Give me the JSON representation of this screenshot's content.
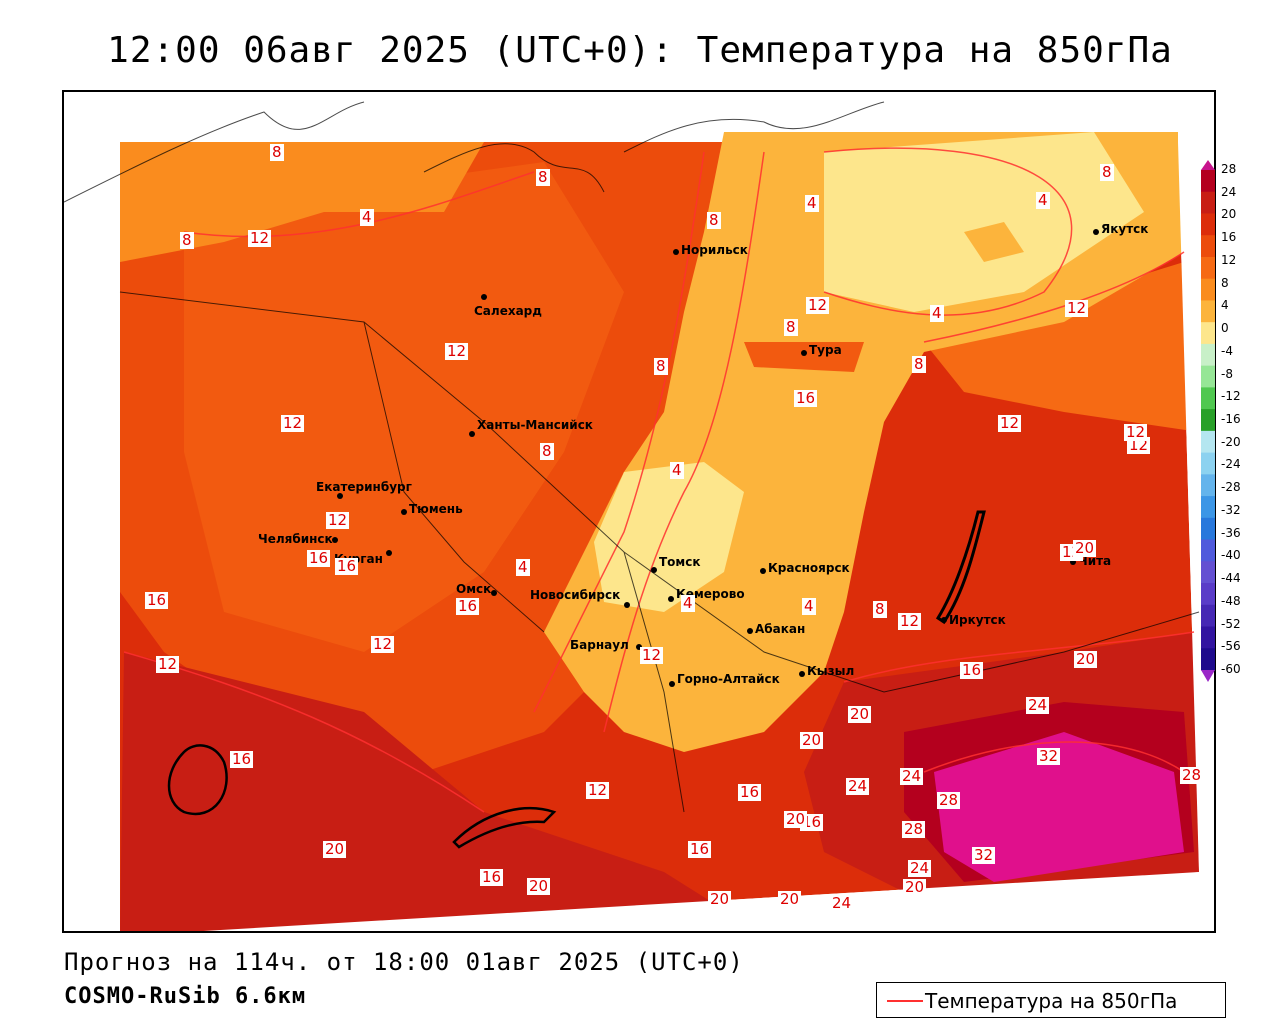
{
  "header": {
    "title": "12:00 06авг 2025 (UTC+0): Температура на 850гПа"
  },
  "footer": {
    "forecast": "Прогноз на 114ч. от 18:00 01авг 2025 (UTC+0)",
    "model": "COSMO-RuSib 6.6км"
  },
  "legend": {
    "label": "Температура на 850гПа",
    "line_color": "#ff3030"
  },
  "colorbar": {
    "ticks": [
      "28",
      "24",
      "20",
      "16",
      "12",
      "8",
      "4",
      "0",
      "-4",
      "-8",
      "-12",
      "-16",
      "-20",
      "-24",
      "-28",
      "-32",
      "-36",
      "-40",
      "-44",
      "-48",
      "-52",
      "-56",
      "-60"
    ],
    "colors": [
      "#b4001e",
      "#c81e14",
      "#dc2d0a",
      "#ec4c0c",
      "#f66a14",
      "#fa8c1e",
      "#fcb43c",
      "#fde68c",
      "#c8f0c8",
      "#96e696",
      "#50c850",
      "#28a028",
      "#b4e6f0",
      "#8cd2f0",
      "#64b4ec",
      "#3c96e6",
      "#2878dc",
      "#505adc",
      "#6450d2",
      "#5a3cc8",
      "#4628b4",
      "#3214a0",
      "#1e0a8c"
    ]
  },
  "cities": [
    {
      "name": "Салехард"
    },
    {
      "name": "Норильск"
    },
    {
      "name": "Якутск"
    },
    {
      "name": "Тура"
    },
    {
      "name": "Ханты-Мансийск"
    },
    {
      "name": "Екатеринбург"
    },
    {
      "name": "Тюмень"
    },
    {
      "name": "Челябинск"
    },
    {
      "name": "Курган"
    },
    {
      "name": "Омск"
    },
    {
      "name": "Новосибирск"
    },
    {
      "name": "Томск"
    },
    {
      "name": "Кемерово"
    },
    {
      "name": "Красноярск"
    },
    {
      "name": "Абакан"
    },
    {
      "name": "Барнаул"
    },
    {
      "name": "Горно-Алтайск"
    },
    {
      "name": "Кызыл"
    },
    {
      "name": "Иркутск"
    },
    {
      "name": "Чита"
    }
  ],
  "contour_labels": [
    "8",
    "4",
    "8",
    "12",
    "8",
    "8",
    "4",
    "8",
    "4",
    "12",
    "16",
    "12",
    "4",
    "8",
    "8",
    "4",
    "12",
    "12",
    "12",
    "12",
    "8",
    "4",
    "12",
    "16",
    "16",
    "16",
    "12",
    "16",
    "12",
    "16",
    "20",
    "8",
    "4",
    "4",
    "8",
    "12",
    "20",
    "12",
    "16",
    "20",
    "16",
    "24",
    "32",
    "28",
    "16",
    "12",
    "12",
    "20",
    "20",
    "24",
    "28",
    "24",
    "20",
    "28",
    "32",
    "20",
    "16",
    "20",
    "16",
    "20",
    "20",
    "24",
    "24",
    "12"
  ]
}
